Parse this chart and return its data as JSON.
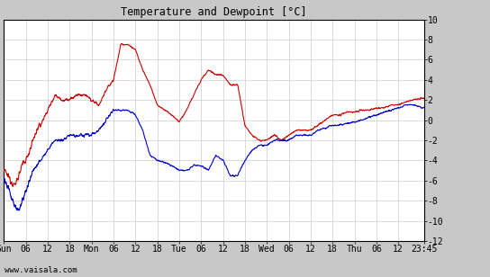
{
  "title": "Temperature and Dewpoint [°C]",
  "watermark": "www.vaisala.com",
  "xlim": [
    0,
    115
  ],
  "ylim": [
    -12,
    10
  ],
  "yticks": [
    -12,
    -10,
    -8,
    -6,
    -4,
    -2,
    0,
    2,
    4,
    6,
    8,
    10
  ],
  "xtick_labels": [
    "Sun",
    "06",
    "12",
    "18",
    "Mon",
    "06",
    "12",
    "18",
    "Tue",
    "06",
    "12",
    "18",
    "Wed",
    "06",
    "12",
    "18",
    "Thu",
    "06",
    "12",
    "23:45"
  ],
  "xtick_positions": [
    0,
    6,
    12,
    18,
    24,
    30,
    36,
    42,
    48,
    54,
    60,
    66,
    72,
    78,
    84,
    90,
    96,
    102,
    108,
    115
  ],
  "temp_color": "#cc0000",
  "dewp_color": "#0000cc",
  "plot_bg_color": "#ffffff",
  "fig_bg_color": "#c8c8c8",
  "grid_color": "#cccccc",
  "linewidth": 0.8,
  "temp_knots_x": [
    0,
    1,
    2,
    3,
    4,
    5,
    6,
    7,
    8,
    9,
    10,
    12,
    14,
    16,
    18,
    20,
    22,
    24,
    26,
    28,
    30,
    32,
    34,
    36,
    38,
    40,
    42,
    44,
    46,
    48,
    50,
    52,
    54,
    56,
    58,
    60,
    62,
    64,
    66,
    68,
    70,
    72,
    74,
    76,
    78,
    80,
    82,
    84,
    86,
    88,
    90,
    92,
    94,
    96,
    98,
    100,
    102,
    104,
    106,
    108,
    110,
    112,
    115
  ],
  "temp_knots_y": [
    -5,
    -5.5,
    -6,
    -6.5,
    -5.5,
    -4.5,
    -4,
    -3,
    -2,
    -1,
    -0.5,
    1,
    2.5,
    2,
    2,
    2.5,
    2.5,
    2,
    1.5,
    3,
    4,
    7.5,
    7.5,
    7,
    5,
    3.5,
    1.5,
    1,
    0.5,
    -0.2,
    1,
    2.5,
    4,
    5,
    4.5,
    4.5,
    3.5,
    3.5,
    -0.5,
    -1.5,
    -2,
    -2,
    -1.5,
    -2,
    -1.5,
    -1,
    -1,
    -1,
    -0.5,
    0,
    0.5,
    0.5,
    0.8,
    0.8,
    1,
    1,
    1.2,
    1.2,
    1.5,
    1.5,
    1.8,
    2,
    2.2
  ],
  "dewp_knots_x": [
    0,
    1,
    2,
    3,
    4,
    5,
    6,
    7,
    8,
    9,
    10,
    12,
    14,
    16,
    18,
    20,
    22,
    24,
    26,
    28,
    30,
    32,
    34,
    36,
    38,
    40,
    42,
    44,
    46,
    48,
    50,
    52,
    54,
    56,
    58,
    60,
    62,
    64,
    66,
    68,
    70,
    72,
    74,
    76,
    78,
    80,
    82,
    84,
    86,
    88,
    90,
    92,
    94,
    96,
    98,
    100,
    102,
    104,
    106,
    108,
    110,
    112,
    115
  ],
  "dewp_knots_y": [
    -6,
    -6.5,
    -7.5,
    -8.5,
    -9,
    -8,
    -7,
    -6,
    -5,
    -4.5,
    -4,
    -3,
    -2,
    -2,
    -1.5,
    -1.5,
    -1.5,
    -1.5,
    -1,
    0,
    1,
    1,
    1,
    0.5,
    -1,
    -3.5,
    -4,
    -4.2,
    -4.5,
    -5,
    -5,
    -4.5,
    -4.5,
    -5,
    -3.5,
    -4,
    -5.5,
    -5.5,
    -4,
    -3,
    -2.5,
    -2.5,
    -2,
    -2,
    -2,
    -1.5,
    -1.5,
    -1.5,
    -1,
    -0.8,
    -0.5,
    -0.5,
    -0.3,
    -0.2,
    0,
    0.3,
    0.5,
    0.8,
    1,
    1.2,
    1.5,
    1.5,
    1.2
  ]
}
